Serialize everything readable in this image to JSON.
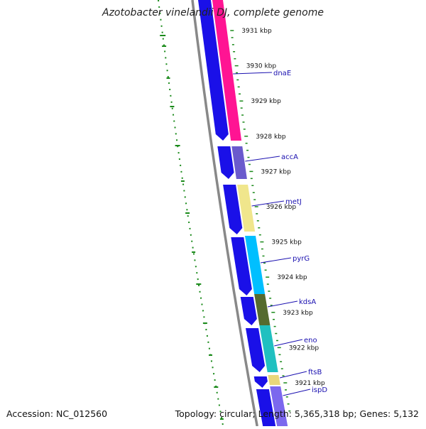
{
  "title": "Azotobacter vinelandii DJ, complete genome",
  "footer": {
    "accession": "Accession: NC_012560",
    "summary": "Topology: circular; Length: 5,365,318 bp; Genes: 5,132"
  },
  "tick_labels": [
    "3931 kbp",
    "3930 kbp",
    "3929 kbp",
    "3928 kbp",
    "3927 kbp",
    "3926 kbp",
    "3925 kbp",
    "3924 kbp",
    "3923 kbp",
    "3922 kbp",
    "3921 kbp"
  ],
  "gene_labels": [
    "dnaE",
    "accA",
    "metJ",
    "pyrG",
    "kdsA",
    "eno",
    "ftsB",
    "ispD"
  ],
  "colors": {
    "backbone": "#888888",
    "reverse_strand": "#1a10e8",
    "label_text": "#1a10b0",
    "gc_skew": "#1a8a1a",
    "dnaE": "#ff1493",
    "accA": "#6a5acd",
    "metJ": "#f0e68c",
    "pyrG": "#00bfff",
    "kdsA": "#556b2f",
    "eno": "#20c0c0",
    "ftsB": "#e8d77a",
    "ispD": "#7b68ee"
  }
}
